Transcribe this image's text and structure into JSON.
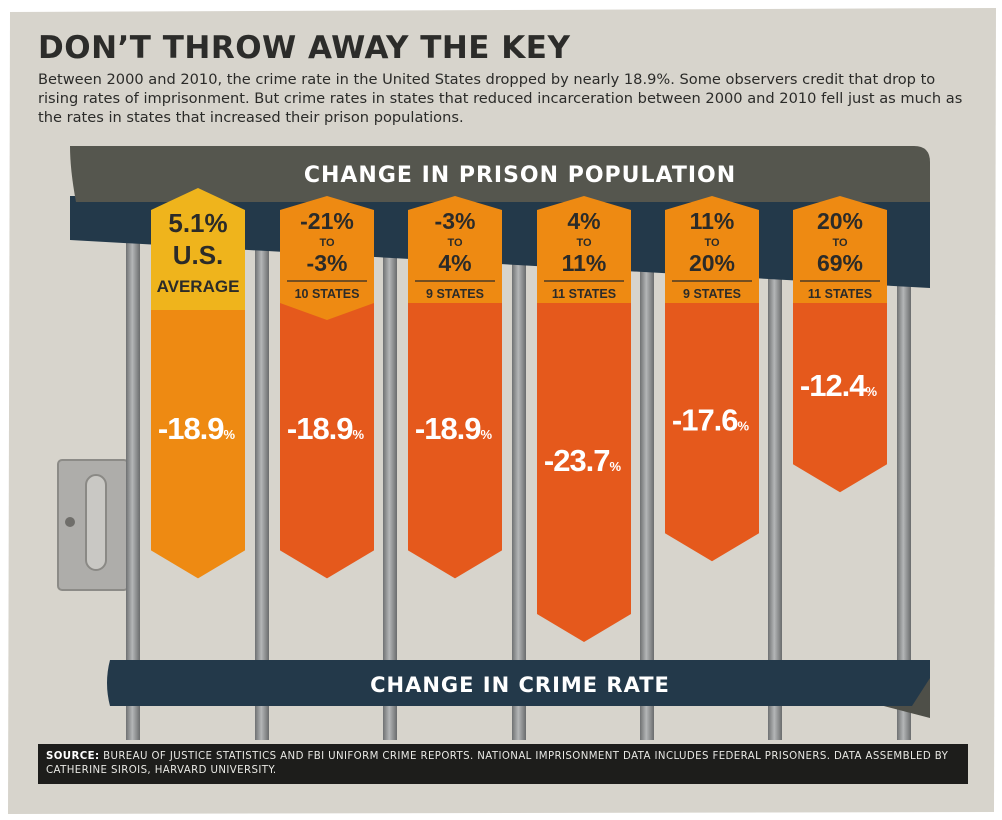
{
  "header": {
    "title": "DON’T THROW AWAY THE KEY",
    "description": "Between 2000 and 2010, the crime rate in the United States dropped by nearly 18.9%. Some observers credit that drop to rising rates of imprisonment. But crime rates in states that reduced incarceration between 2000 and 2010 fell just as much as the rates in states that increased their prison populations."
  },
  "colors": {
    "background": "#d7d4cc",
    "frame": "#ffffff",
    "banner_top": "#55564e",
    "banner_bottom": "#23394a",
    "bar_primary": "#e5591c",
    "bar_average": "#ee8a12",
    "tag_average": "#efb41c",
    "tag": "#ee8a12",
    "bar_pole": "#8f9192",
    "text_dark": "#2b2b29"
  },
  "chart_data": {
    "type": "bar",
    "title": "CHANGE IN PRISON POPULATION",
    "value_axis_label": "CHANGE IN CRIME RATE",
    "unit": "%",
    "categories": [
      {
        "line1": "5.1%",
        "line2": "U.S.",
        "line3": "AVERAGE",
        "count": ""
      },
      {
        "line1": "-21%",
        "to": "TO",
        "line3": "-3%",
        "count": "10 STATES"
      },
      {
        "line1": "-3%",
        "to": "TO",
        "line3": "4%",
        "count": "9 STATES"
      },
      {
        "line1": "4%",
        "to": "TO",
        "line3": "11%",
        "count": "11 STATES"
      },
      {
        "line1": "11%",
        "to": "TO",
        "line3": "20%",
        "count": "9 STATES"
      },
      {
        "line1": "20%",
        "to": "TO",
        "line3": "69%",
        "count": "11 STATES"
      }
    ],
    "values": [
      -18.9,
      -18.9,
      -18.9,
      -23.7,
      -17.6,
      -12.4
    ],
    "value_labels": [
      "-18.9",
      "-18.9",
      "-18.9",
      "-23.7",
      "-17.6",
      "-12.4"
    ]
  },
  "footer": {
    "source_label": "SOURCE:",
    "source_text": "BUREAU OF JUSTICE STATISTICS AND FBI UNIFORM CRIME REPORTS. NATIONAL IMPRISONMENT DATA INCLUDES FEDERAL PRISONERS. DATA ASSEMBLED BY CATHERINE SIROIS, HARVARD UNIVERSITY."
  }
}
